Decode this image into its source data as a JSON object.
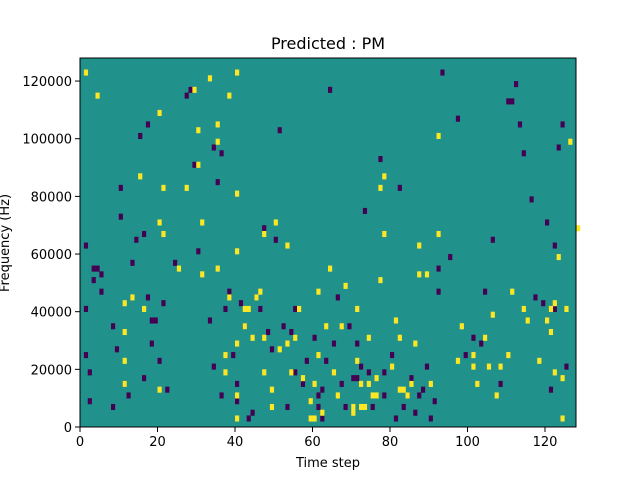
{
  "chart_data": {
    "type": "heatmap",
    "title": "Predicted : PM",
    "xlabel": "Time step",
    "ylabel": "Frequency (Hz)",
    "xlim": [
      0,
      128
    ],
    "ylim": [
      0,
      128000
    ],
    "xticks": [
      0,
      20,
      40,
      60,
      80,
      100,
      120
    ],
    "yticks": [
      0,
      20000,
      40000,
      60000,
      80000,
      100000,
      120000
    ],
    "n_time_steps": 128,
    "n_freq_bins": 64,
    "freq_bin_width_hz": 2000,
    "value_levels": [
      -1,
      0,
      1
    ],
    "colormap": "viridis",
    "colors": {
      "low": "#440154",
      "mid": "#21918c",
      "high": "#fde725"
    },
    "background_value": 0,
    "cells_yellow": [
      [
        1,
        122
      ],
      [
        4,
        114
      ],
      [
        11,
        42
      ],
      [
        11,
        32
      ],
      [
        11,
        22
      ],
      [
        11,
        14
      ],
      [
        13,
        44
      ],
      [
        15,
        86
      ],
      [
        16,
        40
      ],
      [
        20,
        108
      ],
      [
        20,
        70
      ],
      [
        20,
        12
      ],
      [
        21,
        82
      ],
      [
        21,
        66
      ],
      [
        25,
        54
      ],
      [
        27,
        82
      ],
      [
        29,
        116
      ],
      [
        30,
        102
      ],
      [
        30,
        90
      ],
      [
        31,
        70
      ],
      [
        31,
        52
      ],
      [
        33,
        120
      ],
      [
        35,
        104
      ],
      [
        35,
        98
      ],
      [
        35,
        54
      ],
      [
        37,
        18
      ],
      [
        37,
        24
      ],
      [
        38,
        114
      ],
      [
        38,
        44
      ],
      [
        40,
        2
      ],
      [
        40,
        10
      ],
      [
        40,
        28
      ],
      [
        40,
        60
      ],
      [
        40,
        80
      ],
      [
        40,
        122
      ],
      [
        42,
        34
      ],
      [
        42,
        40
      ],
      [
        43,
        40
      ],
      [
        44,
        30
      ],
      [
        45,
        44
      ],
      [
        46,
        46
      ],
      [
        47,
        30
      ],
      [
        47,
        66
      ],
      [
        47,
        18
      ],
      [
        49,
        6
      ],
      [
        49,
        12
      ],
      [
        50,
        70
      ],
      [
        51,
        26
      ],
      [
        53,
        28
      ],
      [
        53,
        62
      ],
      [
        54,
        18
      ],
      [
        55,
        30
      ],
      [
        56,
        40
      ],
      [
        57,
        16
      ],
      [
        59,
        2
      ],
      [
        59,
        8
      ],
      [
        60,
        2
      ],
      [
        60,
        14
      ],
      [
        61,
        24
      ],
      [
        61,
        46
      ],
      [
        62,
        4
      ],
      [
        63,
        34
      ],
      [
        64,
        54
      ],
      [
        65,
        18
      ],
      [
        66,
        10
      ],
      [
        67,
        34
      ],
      [
        68,
        48
      ],
      [
        70,
        4
      ],
      [
        70,
        6
      ],
      [
        71,
        22
      ],
      [
        71,
        40
      ],
      [
        72,
        6
      ],
      [
        72,
        14
      ],
      [
        73,
        6
      ],
      [
        74,
        14
      ],
      [
        74,
        30
      ],
      [
        75,
        10
      ],
      [
        76,
        10
      ],
      [
        76,
        16
      ],
      [
        77,
        50
      ],
      [
        77,
        82
      ],
      [
        78,
        66
      ],
      [
        78,
        86
      ],
      [
        80,
        20
      ],
      [
        81,
        36
      ],
      [
        82,
        12
      ],
      [
        82,
        30
      ],
      [
        83,
        12
      ],
      [
        84,
        10
      ],
      [
        85,
        14
      ],
      [
        86,
        28
      ],
      [
        87,
        62
      ],
      [
        87,
        52
      ],
      [
        89,
        52
      ],
      [
        90,
        14
      ],
      [
        92,
        66
      ],
      [
        92,
        100
      ],
      [
        97,
        22
      ],
      [
        98,
        34
      ],
      [
        101,
        20
      ],
      [
        101,
        24
      ],
      [
        102,
        14
      ],
      [
        104,
        30
      ],
      [
        105,
        20
      ],
      [
        106,
        38
      ],
      [
        107,
        10
      ],
      [
        108,
        20
      ],
      [
        110,
        24
      ],
      [
        111,
        46
      ],
      [
        114,
        40
      ],
      [
        115,
        36
      ],
      [
        118,
        22
      ],
      [
        120,
        36
      ],
      [
        121,
        40
      ],
      [
        121,
        32
      ],
      [
        122,
        18
      ],
      [
        122,
        42
      ],
      [
        123,
        58
      ],
      [
        124,
        2
      ],
      [
        124,
        16
      ],
      [
        125,
        40
      ],
      [
        126,
        98
      ],
      [
        128,
        68
      ]
    ],
    "cells_purple": [
      [
        1,
        62
      ],
      [
        1,
        40
      ],
      [
        1,
        24
      ],
      [
        2,
        18
      ],
      [
        2,
        8
      ],
      [
        3,
        50
      ],
      [
        3,
        54
      ],
      [
        4,
        54
      ],
      [
        5,
        46
      ],
      [
        5,
        52
      ],
      [
        8,
        34
      ],
      [
        8,
        6
      ],
      [
        9,
        26
      ],
      [
        10,
        72
      ],
      [
        10,
        82
      ],
      [
        11,
        14
      ],
      [
        12,
        10
      ],
      [
        13,
        56
      ],
      [
        14,
        64
      ],
      [
        15,
        100
      ],
      [
        16,
        66
      ],
      [
        16,
        16
      ],
      [
        17,
        104
      ],
      [
        17,
        44
      ],
      [
        18,
        28
      ],
      [
        18,
        36
      ],
      [
        19,
        36
      ],
      [
        20,
        22
      ],
      [
        21,
        42
      ],
      [
        22,
        12
      ],
      [
        24,
        56
      ],
      [
        27,
        114
      ],
      [
        28,
        116
      ],
      [
        29,
        90
      ],
      [
        30,
        60
      ],
      [
        33,
        36
      ],
      [
        34,
        20
      ],
      [
        34,
        96
      ],
      [
        35,
        84
      ],
      [
        36,
        10
      ],
      [
        36,
        94
      ],
      [
        37,
        40
      ],
      [
        38,
        46
      ],
      [
        39,
        24
      ],
      [
        40,
        8
      ],
      [
        40,
        14
      ],
      [
        41,
        42
      ],
      [
        42,
        34
      ],
      [
        43,
        2
      ],
      [
        44,
        4
      ],
      [
        45,
        44
      ],
      [
        46,
        40
      ],
      [
        47,
        68
      ],
      [
        48,
        32
      ],
      [
        49,
        26
      ],
      [
        50,
        64
      ],
      [
        51,
        102
      ],
      [
        52,
        34
      ],
      [
        53,
        6
      ],
      [
        54,
        32
      ],
      [
        55,
        18
      ],
      [
        55,
        40
      ],
      [
        57,
        14
      ],
      [
        58,
        22
      ],
      [
        60,
        30
      ],
      [
        61,
        6
      ],
      [
        61,
        10
      ],
      [
        62,
        2
      ],
      [
        62,
        12
      ],
      [
        63,
        22
      ],
      [
        64,
        116
      ],
      [
        65,
        28
      ],
      [
        66,
        44
      ],
      [
        67,
        14
      ],
      [
        68,
        6
      ],
      [
        69,
        34
      ],
      [
        70,
        16
      ],
      [
        71,
        16
      ],
      [
        71,
        28
      ],
      [
        72,
        20
      ],
      [
        73,
        74
      ],
      [
        74,
        18
      ],
      [
        75,
        6
      ],
      [
        77,
        92
      ],
      [
        78,
        10
      ],
      [
        78,
        18
      ],
      [
        80,
        24
      ],
      [
        81,
        2
      ],
      [
        82,
        82
      ],
      [
        83,
        6
      ],
      [
        84,
        10
      ],
      [
        85,
        16
      ],
      [
        86,
        4
      ],
      [
        87,
        10
      ],
      [
        88,
        12
      ],
      [
        89,
        20
      ],
      [
        90,
        2
      ],
      [
        91,
        8
      ],
      [
        92,
        46
      ],
      [
        92,
        54
      ],
      [
        93,
        122
      ],
      [
        95,
        58
      ],
      [
        97,
        106
      ],
      [
        99,
        24
      ],
      [
        101,
        30
      ],
      [
        103,
        28
      ],
      [
        104,
        46
      ],
      [
        106,
        64
      ],
      [
        108,
        14
      ],
      [
        110,
        112
      ],
      [
        111,
        112
      ],
      [
        112,
        118
      ],
      [
        113,
        104
      ],
      [
        114,
        94
      ],
      [
        116,
        78
      ],
      [
        117,
        44
      ],
      [
        119,
        42
      ],
      [
        120,
        70
      ],
      [
        121,
        12
      ],
      [
        122,
        40
      ],
      [
        122,
        62
      ],
      [
        123,
        96
      ],
      [
        124,
        104
      ],
      [
        125,
        20
      ]
    ]
  }
}
